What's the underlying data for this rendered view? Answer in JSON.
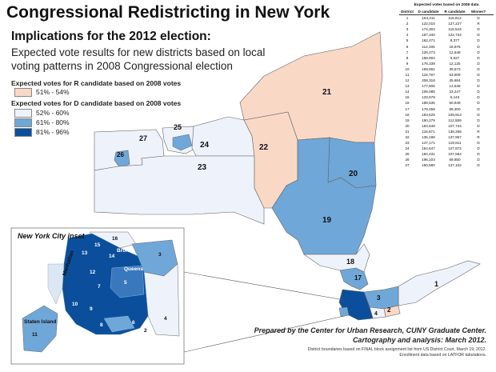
{
  "title": "Congressional Redistricting in New York",
  "subtitle": "Implications for the 2012 election:",
  "description": "Expected vote results for new districts based on local voting patterns in 2008 Congressional election",
  "legend": {
    "r_title": "Expected votes for R candidate based on 2008 votes",
    "r_items": [
      {
        "label": "51% - 54%",
        "color": "#f9d9c6"
      }
    ],
    "d_title": "Expected votes for D candidate based on 2008 votes",
    "d_items": [
      {
        "label": "52% - 60%",
        "color": "#eef2fb"
      },
      {
        "label": "61% - 80%",
        "color": "#6fa7d8"
      },
      {
        "label": "81% - 96%",
        "color": "#0b4f9c"
      }
    ]
  },
  "table": {
    "caption": "Expected votes based on 2008 data",
    "headers": [
      "District",
      "D candidate",
      "R candidate",
      "Winner?"
    ],
    "rows": [
      [
        "1",
        "164,311",
        "116,612",
        "D"
      ],
      [
        "2",
        "122,010",
        "127,227",
        "R"
      ],
      [
        "3",
        "174,304",
        "115,543",
        "D"
      ],
      [
        "4",
        "167,340",
        "122,734",
        "D"
      ],
      [
        "5",
        "162,471",
        "8,377",
        "D"
      ],
      [
        "6",
        "112,165",
        "18,876",
        "D"
      ],
      [
        "7",
        "126,273",
        "12,648",
        "D"
      ],
      [
        "8",
        "158,904",
        "9,527",
        "D"
      ],
      [
        "9",
        "176,339",
        "12,125",
        "D"
      ],
      [
        "10",
        "169,691",
        "39,573",
        "D"
      ],
      [
        "11",
        "118,787",
        "63,909",
        "D"
      ],
      [
        "12",
        "208,316",
        "45,684",
        "D"
      ],
      [
        "13",
        "177,806",
        "12,638",
        "D"
      ],
      [
        "14",
        "108,085",
        "23,247",
        "D"
      ],
      [
        "15",
        "133,578",
        "5,143",
        "D"
      ],
      [
        "16",
        "188,535",
        "50,949",
        "D"
      ],
      [
        "17",
        "179,458",
        "89,300",
        "D"
      ],
      [
        "18",
        "163,525",
        "109,913",
        "D"
      ],
      [
        "19",
        "190,279",
        "112,559",
        "D"
      ],
      [
        "20",
        "194,649",
        "107,734",
        "D"
      ],
      [
        "21",
        "118,671",
        "138,256",
        "R"
      ],
      [
        "22",
        "135,198",
        "137,957",
        "R"
      ],
      [
        "23",
        "147,171",
        "119,811",
        "D"
      ],
      [
        "24",
        "154,647",
        "127,872",
        "D"
      ],
      [
        "25",
        "184,431",
        "107,584",
        "D"
      ],
      [
        "26",
        "196,103",
        "69,850",
        "D"
      ],
      [
        "27",
        "150,580",
        "137,102",
        "D"
      ]
    ]
  },
  "districts": [
    "21",
    "22",
    "20",
    "19",
    "18",
    "17",
    "23",
    "24",
    "25",
    "26",
    "27",
    "1",
    "2",
    "3",
    "4"
  ],
  "inset": {
    "title": "New York City inset",
    "borough_labels": [
      "Manhattan",
      "Bronx",
      "Queens",
      "Staten Island"
    ],
    "district_labels": [
      "16",
      "15",
      "14",
      "13",
      "12",
      "7",
      "10",
      "9",
      "8",
      "6",
      "5",
      "11",
      "3",
      "4",
      "2"
    ]
  },
  "credit": [
    "Prepared by the Center for Urban Research, CUNY Graduate Center.",
    "Cartography and analysis: March 2012."
  ],
  "notes": [
    "District boundaries based on FINAL block assignment list from US District Court, March 19, 2012.",
    "Enrollment data based on LATFOR tabulations."
  ]
}
